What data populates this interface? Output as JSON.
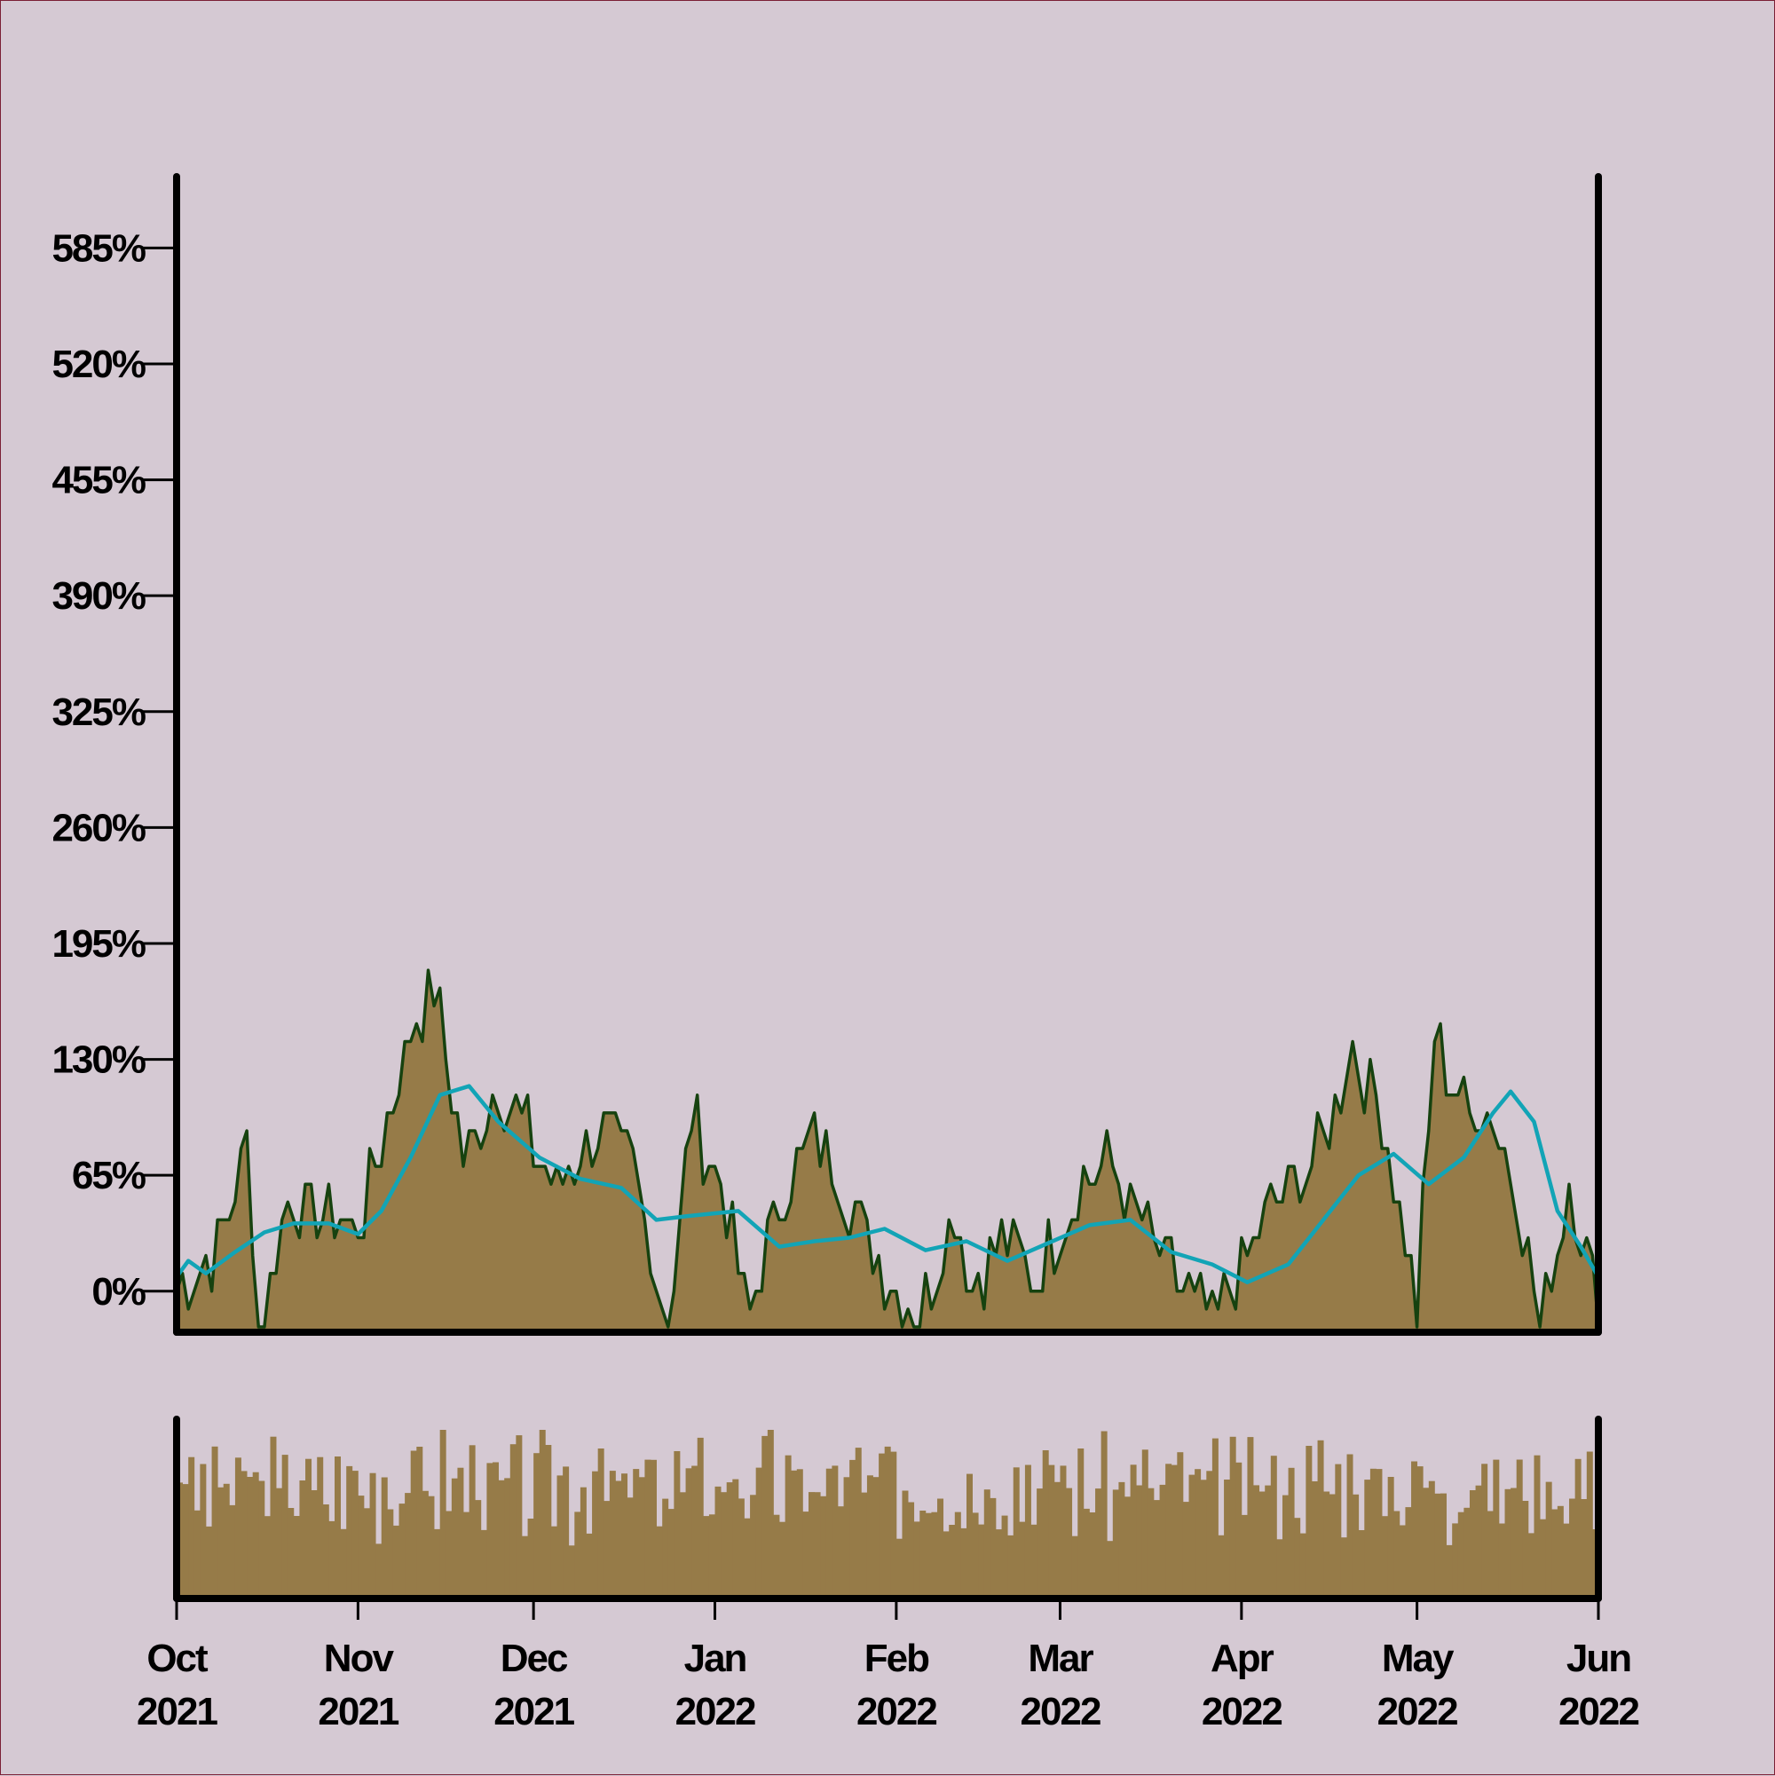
{
  "colors": {
    "background": "#d5c9d3",
    "area_fill": "#967b48",
    "daily_line": "#16420f",
    "moving_avg_line": "#12a4b6",
    "volume_bars": "#967b48",
    "axis": "#000000",
    "frame": "#7a1f35"
  },
  "chart_data": [
    {
      "type": "area",
      "title": "",
      "xlabel": "",
      "ylabel": "",
      "x_type": "date",
      "x_range": [
        "2021-10-01",
        "2022-06-01"
      ],
      "ylim": [
        -23,
        625
      ],
      "y_ticks": [
        0,
        65,
        130,
        195,
        260,
        325,
        390,
        455,
        520,
        585
      ],
      "y_tick_labels": [
        "0%",
        "65%",
        "130%",
        "195%",
        "260%",
        "325%",
        "390%",
        "455%",
        "520%",
        "585%"
      ],
      "x_ticks": [
        "2021-10-01",
        "2021-11-01",
        "2021-12-01",
        "2022-01-01",
        "2022-02-01",
        "2022-03-01",
        "2022-04-01",
        "2022-05-01",
        "2022-06-01"
      ],
      "x_tick_labels": [
        {
          "month": "Oct",
          "year": "2021"
        },
        {
          "month": "Nov",
          "year": "2021"
        },
        {
          "month": "Dec",
          "year": "2021"
        },
        {
          "month": "Jan",
          "year": "2022"
        },
        {
          "month": "Feb",
          "year": "2022"
        },
        {
          "month": "Mar",
          "year": "2022"
        },
        {
          "month": "Apr",
          "year": "2022"
        },
        {
          "month": "May",
          "year": "2022"
        },
        {
          "month": "Jun",
          "year": "2022"
        }
      ],
      "grid": false,
      "legend": "none",
      "series": [
        {
          "style": "filled step area with dark outline",
          "x": [
            "2021-10-01",
            "2021-10-08",
            "2021-10-13",
            "2021-10-15",
            "2021-10-20",
            "2021-10-25",
            "2021-11-01",
            "2021-11-06",
            "2021-11-10",
            "2021-11-14",
            "2021-11-19",
            "2021-11-25",
            "2021-12-05",
            "2021-12-12",
            "2021-12-18",
            "2021-12-24",
            "2021-12-28",
            "2022-01-02",
            "2022-01-07",
            "2022-01-12",
            "2022-01-18",
            "2022-01-23",
            "2022-01-28",
            "2022-02-05",
            "2022-02-11",
            "2022-02-14",
            "2022-02-20",
            "2022-02-25",
            "2022-03-04",
            "2022-03-09",
            "2022-03-18",
            "2022-03-27",
            "2022-04-05",
            "2022-04-10",
            "2022-04-15",
            "2022-04-20",
            "2022-04-25",
            "2022-05-01",
            "2022-05-04",
            "2022-05-10",
            "2022-05-13",
            "2022-05-18",
            "2022-05-22",
            "2022-05-27",
            "2022-06-01"
          ],
          "y": [
            5,
            20,
            85,
            -20,
            50,
            45,
            35,
            95,
            145,
            175,
            70,
            115,
            60,
            90,
            70,
            -20,
            95,
            60,
            -15,
            50,
            85,
            60,
            20,
            -15,
            50,
            5,
            30,
            5,
            60,
            70,
            20,
            -20,
            40,
            60,
            85,
            140,
            100,
            -10,
            140,
            100,
            105,
            60,
            -20,
            60,
            -10
          ]
        },
        {
          "style": "moving average line",
          "x": [
            "2021-10-01",
            "2021-10-03",
            "2021-10-06",
            "2021-10-11",
            "2021-10-16",
            "2021-10-21",
            "2021-10-27",
            "2021-11-01",
            "2021-11-05",
            "2021-11-10",
            "2021-11-15",
            "2021-11-20",
            "2021-11-25",
            "2021-12-02",
            "2021-12-09",
            "2021-12-16",
            "2021-12-22",
            "2021-12-27",
            "2022-01-05",
            "2022-01-12",
            "2022-01-18",
            "2022-01-24",
            "2022-01-30",
            "2022-02-06",
            "2022-02-13",
            "2022-02-20",
            "2022-02-27",
            "2022-03-06",
            "2022-03-13",
            "2022-03-20",
            "2022-03-27",
            "2022-04-02",
            "2022-04-09",
            "2022-04-15",
            "2022-04-21",
            "2022-04-27",
            "2022-05-03",
            "2022-05-09",
            "2022-05-14",
            "2022-05-17",
            "2022-05-21",
            "2022-05-25",
            "2022-05-29",
            "2022-06-01"
          ],
          "y": [
            8,
            17,
            10,
            22,
            33,
            38,
            38,
            32,
            45,
            75,
            110,
            115,
            95,
            75,
            63,
            58,
            40,
            42,
            45,
            25,
            28,
            30,
            35,
            23,
            28,
            17,
            27,
            37,
            40,
            22,
            15,
            5,
            15,
            40,
            65,
            77,
            60,
            75,
            100,
            112,
            95,
            45,
            25,
            8
          ]
        }
      ]
    },
    {
      "type": "bar",
      "title": "",
      "description_of_values": "daily volume bars, no y axis labels",
      "x_range": [
        "2021-10-01",
        "2022-06-01"
      ],
      "x_tick_labels_shared_with_above": true,
      "values_relative_profile": [
        0.87,
        0.95,
        0.62,
        0.55,
        0.78,
        0.5,
        0.7,
        0.74,
        0.82,
        0.52,
        0.6,
        0.66,
        0.9,
        0.72,
        0.58,
        0.8,
        0.85,
        0.48,
        0.7,
        0.76,
        0.62,
        0.9,
        0.68,
        0.55,
        0.73,
        0.64,
        0.5,
        0.8,
        0.6,
        0.7,
        0.84,
        0.58,
        0.66,
        0.77,
        0.52,
        0.88,
        0.62,
        0.7,
        0.56,
        0.9,
        0.68,
        0.74,
        0.6,
        0.86,
        0.54,
        0.95,
        0.72,
        0.64,
        0.82,
        0.58
      ]
    }
  ]
}
